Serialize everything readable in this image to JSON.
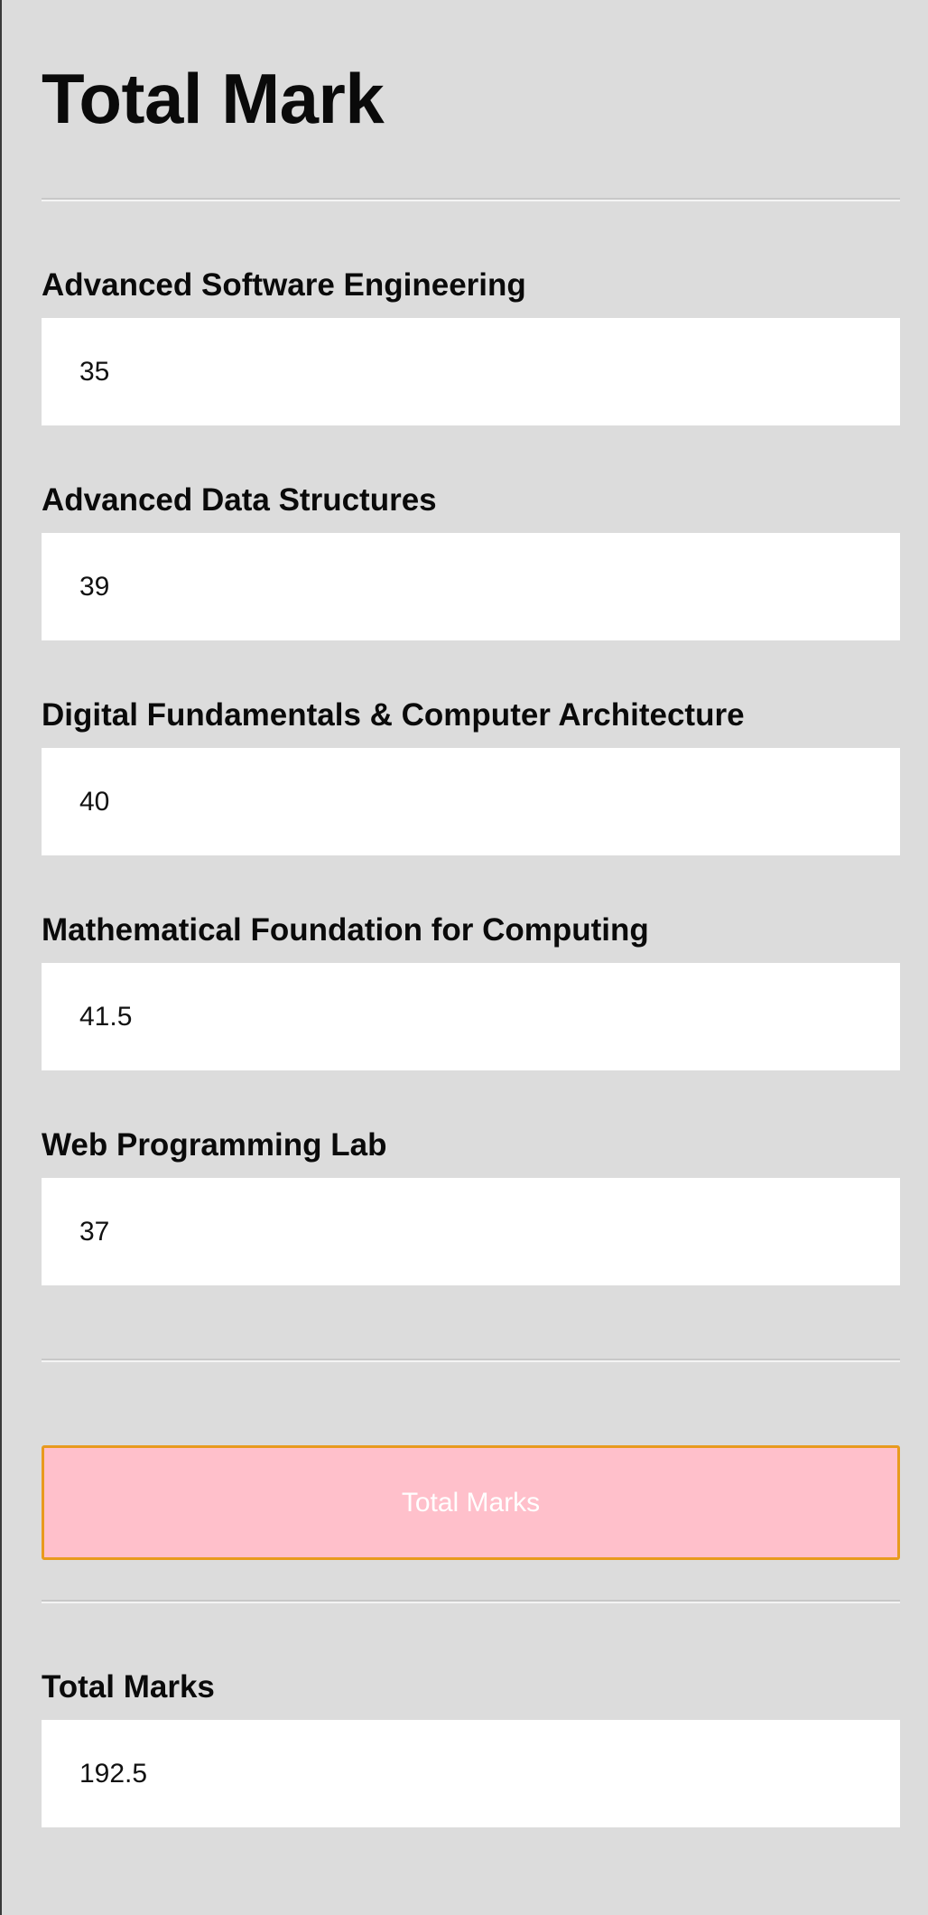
{
  "page": {
    "title": "Total Mark"
  },
  "subjects": [
    {
      "label": "Advanced Software Engineering",
      "value": "35"
    },
    {
      "label": "Advanced Data Structures",
      "value": "39"
    },
    {
      "label": "Digital Fundamentals & Computer Architecture",
      "value": "40"
    },
    {
      "label": "Mathematical Foundation for Computing",
      "value": "41.5"
    },
    {
      "label": "Web Programming Lab",
      "value": "37"
    }
  ],
  "actions": {
    "total_button_label": "Total Marks"
  },
  "result": {
    "label": "Total Marks",
    "value": "192.5"
  },
  "colors": {
    "background": "#dcdcdc",
    "button_fill": "#ffc0cb",
    "button_border": "#e89a1e",
    "input_fill": "#ffffff"
  }
}
